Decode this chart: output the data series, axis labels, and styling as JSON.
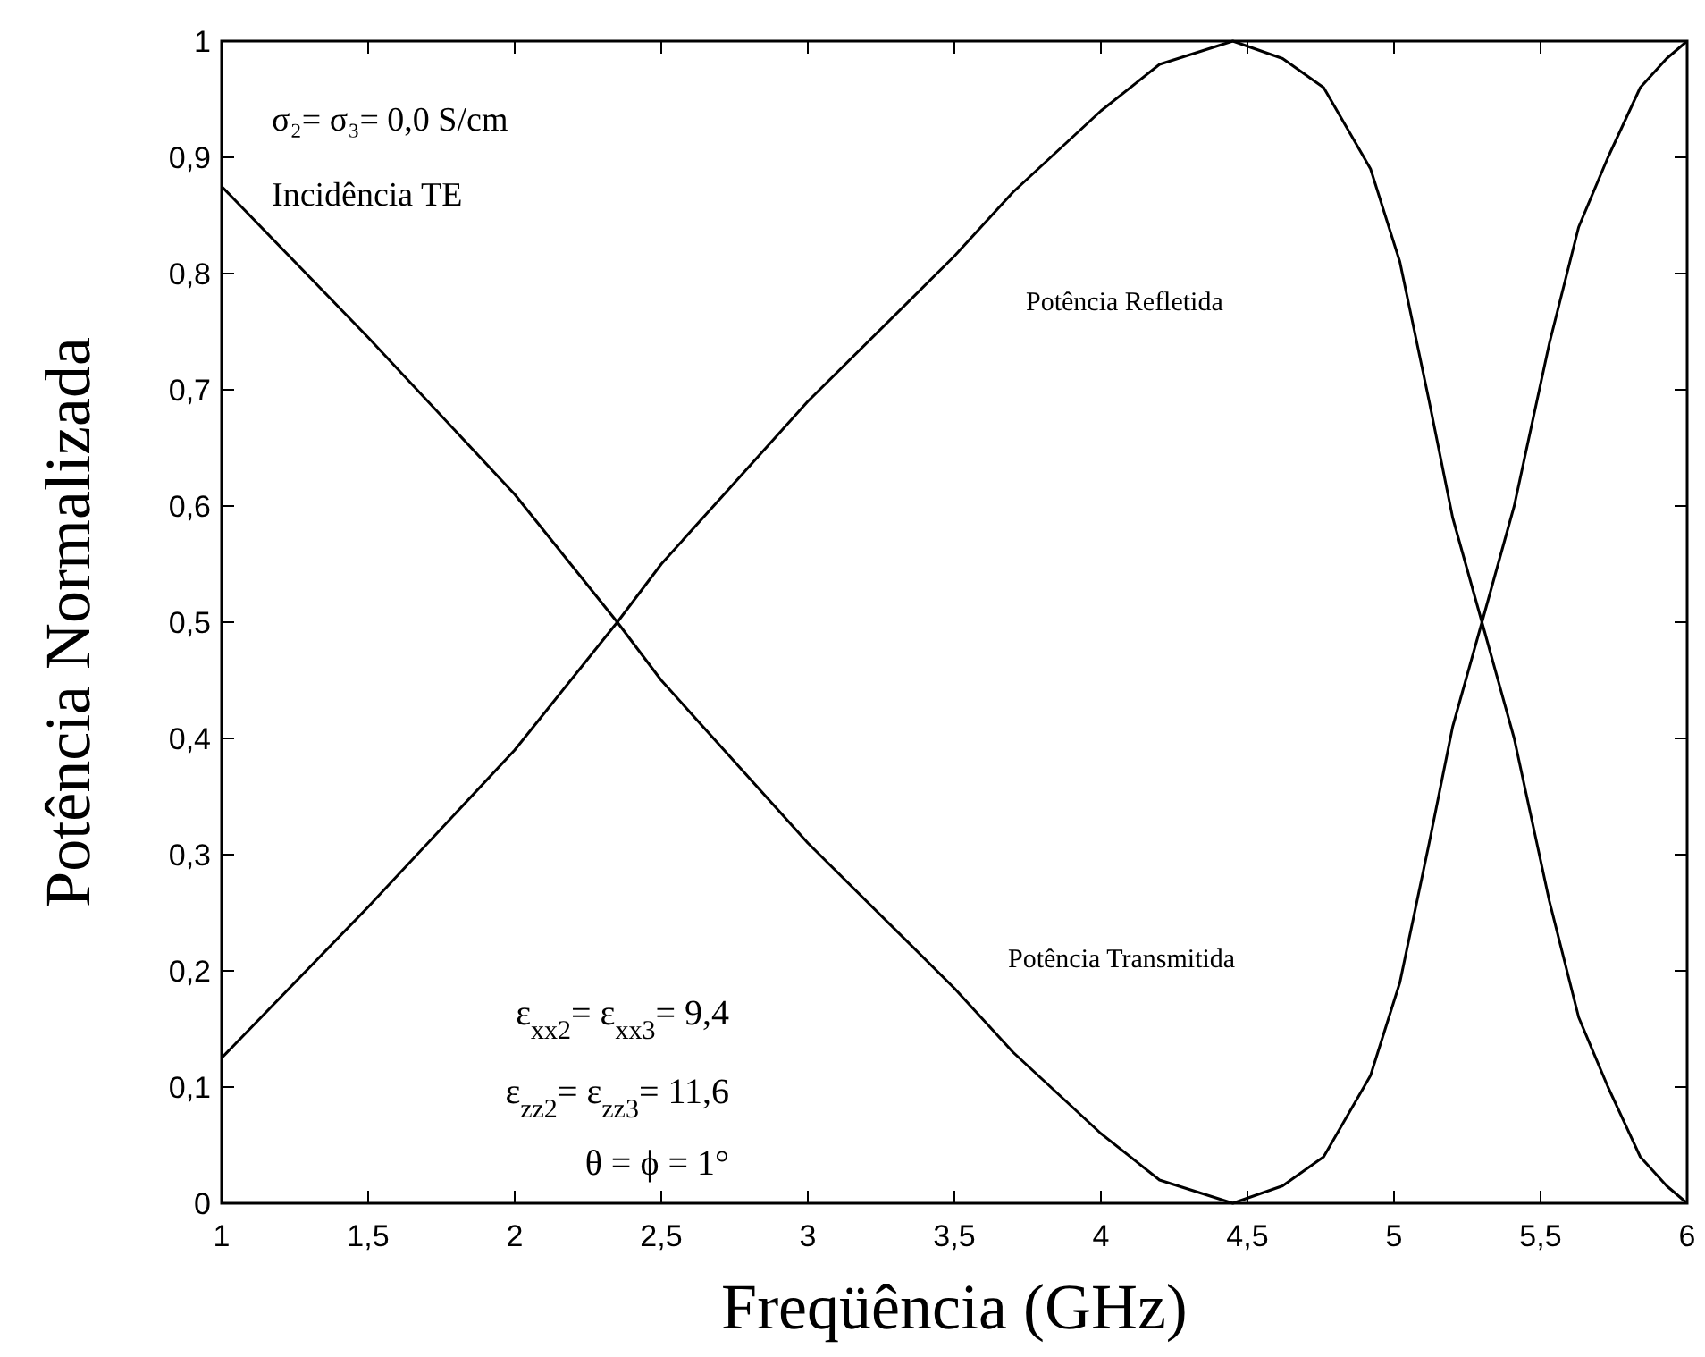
{
  "chart_data": {
    "type": "line",
    "xlabel": "Freqüência (GHz)",
    "ylabel": "Potência Normalizada",
    "x": [
      1,
      1.5,
      2,
      2.35,
      2.5,
      3,
      3.5,
      3.7,
      4,
      4.2,
      4.45,
      4.62,
      4.76,
      4.92,
      5.02,
      5.12,
      5.2,
      5.3,
      5.41,
      5.53,
      5.63,
      5.73,
      5.84,
      5.93,
      6
    ],
    "series": [
      {
        "name": "Potência Refletida",
        "color": "#000000",
        "values": [
          0.125,
          0.255,
          0.39,
          0.5,
          0.55,
          0.69,
          0.815,
          0.87,
          0.94,
          0.98,
          1.0,
          0.985,
          0.96,
          0.89,
          0.81,
          0.69,
          0.59,
          0.5,
          0.6,
          0.74,
          0.84,
          0.9,
          0.96,
          0.985,
          1.0
        ]
      },
      {
        "name": "Potência Transmitida",
        "color": "#000000",
        "values": [
          0.875,
          0.745,
          0.61,
          0.5,
          0.45,
          0.31,
          0.185,
          0.13,
          0.06,
          0.02,
          0.0,
          0.015,
          0.04,
          0.11,
          0.19,
          0.31,
          0.41,
          0.5,
          0.4,
          0.26,
          0.16,
          0.1,
          0.04,
          0.015,
          0.0
        ]
      }
    ],
    "xlim": [
      1,
      6
    ],
    "ylim": [
      0,
      1
    ],
    "xticks": [
      1,
      {
        "value": 1.5,
        "label": "1,5"
      },
      2,
      {
        "value": 2.5,
        "label": "2,5"
      },
      3,
      {
        "value": 3.5,
        "label": "3,5"
      },
      4,
      {
        "value": 4.5,
        "label": "4,5"
      },
      5,
      {
        "value": 5.5,
        "label": "5,5"
      },
      6
    ],
    "yticks": [
      0,
      {
        "value": 0.1,
        "label": "0,1"
      },
      {
        "value": 0.2,
        "label": "0,2"
      },
      {
        "value": 0.3,
        "label": "0,3"
      },
      {
        "value": 0.4,
        "label": "0,4"
      },
      {
        "value": 0.5,
        "label": "0,5"
      },
      {
        "value": 0.6,
        "label": "0,6"
      },
      {
        "value": 0.7,
        "label": "0,7"
      },
      {
        "value": 0.8,
        "label": "0,8"
      },
      {
        "value": 0.9,
        "label": "0,9"
      },
      1
    ],
    "grid": false,
    "marker": "none",
    "line_style": "solid",
    "annotations": [
      "σ₂= σ₃= 0,0 S/cm",
      "Incidência TE",
      "ε$_{xx2}$= ε$_{xx3}$= 9,4",
      "ε$_{zz2}$= ε$_{zz3}$= 11,6",
      "θ = ϕ = 1°"
    ]
  }
}
